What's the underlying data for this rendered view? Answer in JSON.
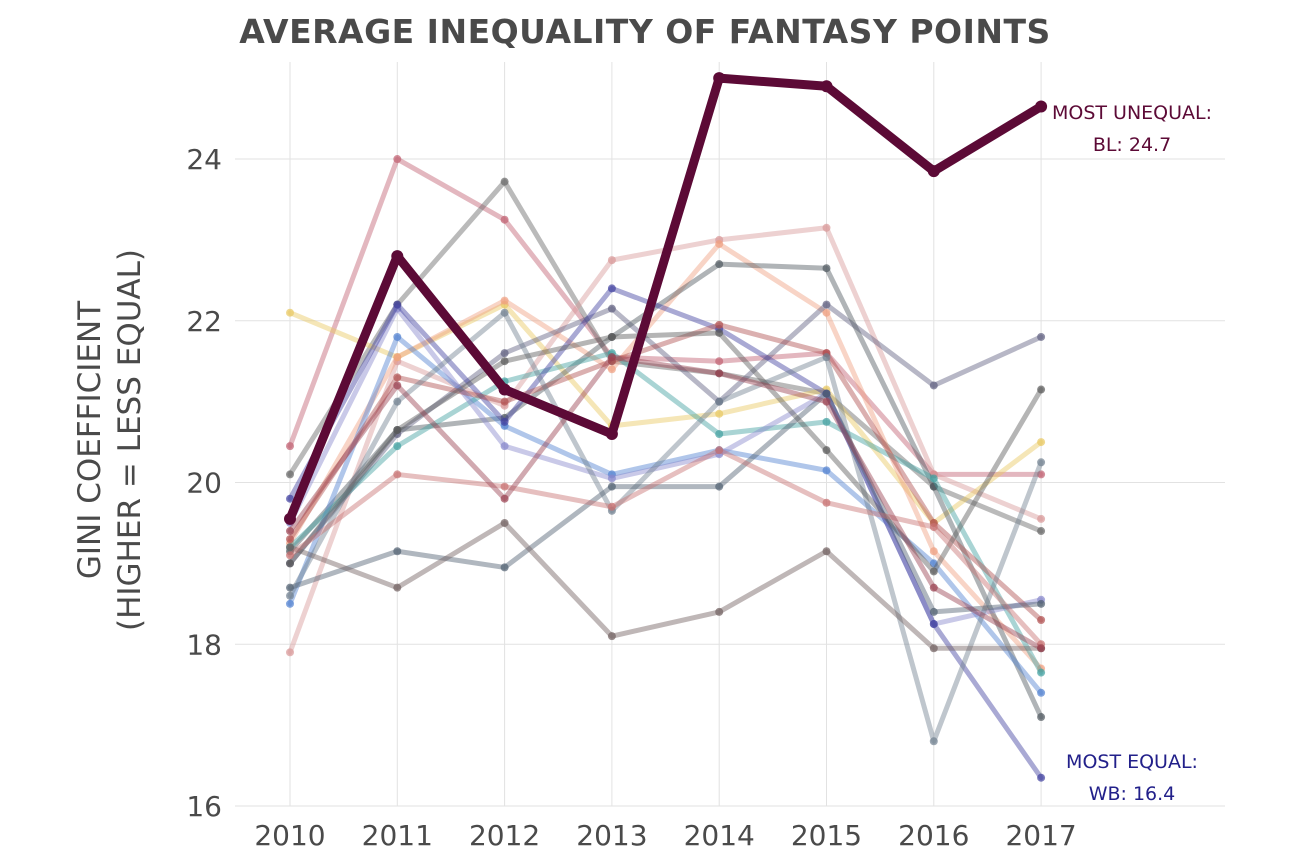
{
  "chart_data": {
    "type": "line",
    "title": "AVERAGE INEQUALITY OF FANTASY POINTS",
    "xlabel": "",
    "ylabel_lines": [
      "GINI COEFFICIENT",
      "(HIGHER = LESS EQUAL)"
    ],
    "x": [
      2010,
      2011,
      2012,
      2013,
      2014,
      2015,
      2016,
      2017
    ],
    "x_tick_labels": [
      "2010",
      "2011",
      "2012",
      "2013",
      "2014",
      "2015",
      "2016",
      "2017"
    ],
    "y_ticks": [
      16,
      18,
      20,
      22,
      24
    ],
    "y_tick_labels": [
      "16",
      "18",
      "20",
      "22",
      "24"
    ],
    "ylim": [
      16,
      25.2
    ],
    "grid": true,
    "series": [
      {
        "color": "#c06070",
        "values": [
          20.45,
          24.0,
          23.25,
          21.55,
          21.5,
          21.6,
          20.1,
          20.1
        ]
      },
      {
        "color": "#666666",
        "values": [
          20.1,
          22.2,
          23.72,
          21.5,
          21.35,
          21.1,
          19.95,
          19.4
        ]
      },
      {
        "color": "#d89898",
        "values": [
          17.9,
          21.5,
          20.95,
          22.75,
          23.0,
          23.15,
          20.1,
          19.55
        ]
      },
      {
        "color": "#e8c860",
        "values": [
          22.1,
          21.55,
          22.2,
          20.7,
          20.85,
          21.15,
          19.5,
          20.5
        ]
      },
      {
        "color": "#f0a080",
        "values": [
          19.25,
          21.55,
          22.25,
          21.4,
          22.95,
          22.1,
          19.15,
          17.7
        ]
      },
      {
        "color": "#606080",
        "values": [
          19.0,
          20.6,
          21.6,
          22.15,
          21.0,
          22.2,
          21.2,
          21.8
        ]
      },
      {
        "color": "#505860",
        "values": [
          19.15,
          20.65,
          20.8,
          21.8,
          22.7,
          22.65,
          19.95,
          17.1
        ]
      },
      {
        "color": "#5080d0",
        "values": [
          18.5,
          21.8,
          20.7,
          20.1,
          20.4,
          20.15,
          19.0,
          17.4
        ]
      },
      {
        "color": "#40a0a0",
        "values": [
          19.2,
          20.45,
          21.25,
          21.6,
          20.6,
          20.75,
          20.05,
          17.65
        ]
      },
      {
        "color": "#8888cc",
        "values": [
          19.5,
          22.15,
          20.45,
          20.05,
          20.35,
          21.1,
          18.25,
          18.55
        ]
      },
      {
        "color": "#4040a0",
        "values": [
          19.8,
          22.2,
          20.75,
          22.4,
          21.9,
          21.1,
          18.25,
          16.35
        ]
      },
      {
        "color": "#b05050",
        "values": [
          19.3,
          21.3,
          21.0,
          21.5,
          21.95,
          21.6,
          19.5,
          18.3
        ]
      },
      {
        "color": "#708090",
        "values": [
          18.6,
          21.0,
          22.1,
          19.65,
          21.0,
          21.55,
          16.8,
          20.25
        ]
      },
      {
        "color": "#506070",
        "values": [
          18.7,
          19.15,
          18.95,
          19.95,
          19.95,
          21.1,
          18.4,
          18.5
        ]
      },
      {
        "color": "#706060",
        "values": [
          19.2,
          18.7,
          19.5,
          18.1,
          18.4,
          19.15,
          17.95,
          17.95
        ]
      },
      {
        "color": "#5a5a5a",
        "values": [
          19.0,
          20.65,
          21.5,
          21.8,
          21.85,
          20.4,
          18.9,
          21.15
        ]
      },
      {
        "color": "#c87070",
        "values": [
          19.1,
          20.1,
          19.95,
          19.7,
          20.4,
          19.75,
          19.45,
          18.0
        ]
      },
      {
        "color": "#9a4050",
        "values": [
          19.4,
          21.2,
          19.8,
          21.55,
          21.35,
          21.0,
          18.7,
          17.95
        ]
      },
      {
        "name": "BL",
        "color": "#5c0a36",
        "highlight": true,
        "values": [
          19.55,
          22.8,
          21.15,
          20.6,
          25.0,
          24.9,
          23.85,
          24.65
        ]
      }
    ],
    "annotations": {
      "most_unequal_line1": "MOST UNEQUAL:",
      "most_unequal_line2": "BL: 24.7",
      "most_unequal_color": "#5c0a36",
      "most_equal_line1": "MOST EQUAL:",
      "most_equal_line2": "WB: 16.4",
      "most_equal_color": "#22208a"
    }
  }
}
